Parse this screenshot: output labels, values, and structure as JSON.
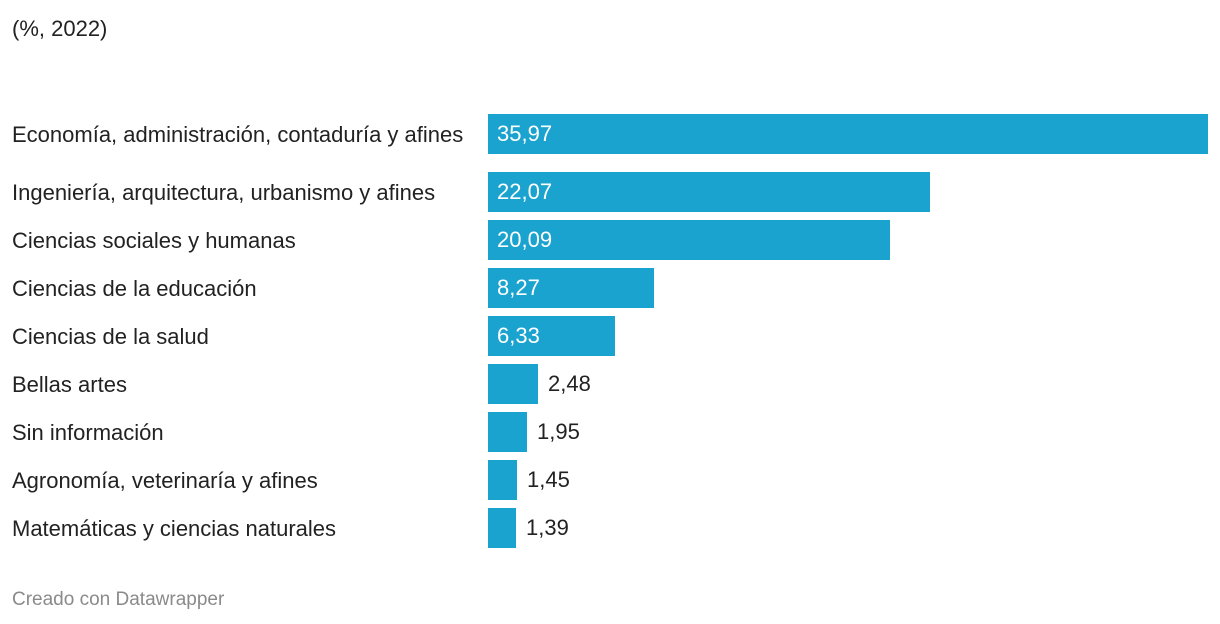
{
  "subtitle": "(%, 2022)",
  "footer": "Creado con Datawrapper",
  "chart_data": {
    "type": "bar",
    "orientation": "horizontal",
    "title": "",
    "subtitle": "(%, 2022)",
    "categories": [
      "Economía, administración, contaduría y afines",
      "Ingeniería, arquitectura, urbanismo y afines",
      "Ciencias sociales y humanas",
      "Ciencias de la educación",
      "Ciencias de la salud",
      "Bellas artes",
      "Sin información",
      "Agronomía, veterinaría y afines",
      "Matemáticas y ciencias naturales"
    ],
    "values": [
      35.97,
      22.07,
      20.09,
      8.27,
      6.33,
      2.48,
      1.95,
      1.45,
      1.39
    ],
    "value_labels": [
      "35,97",
      "22,07",
      "20,09",
      "8,27",
      "6,33",
      "2,48",
      "1,95",
      "1,45",
      "1,39"
    ],
    "xlim": [
      0,
      35.97
    ],
    "bar_color": "#1ba3cf",
    "xlabel": "",
    "ylabel": ""
  }
}
